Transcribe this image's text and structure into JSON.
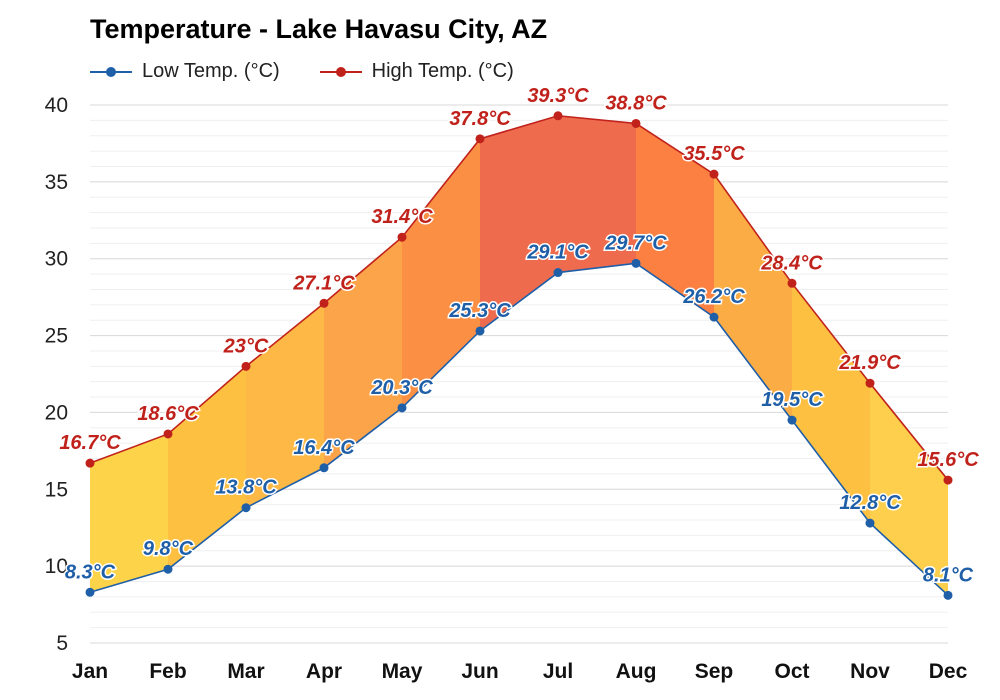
{
  "chart_data": {
    "type": "area",
    "title": "Temperature - Lake Havasu City, AZ",
    "categories": [
      "Jan",
      "Feb",
      "Mar",
      "Apr",
      "May",
      "Jun",
      "Jul",
      "Aug",
      "Sep",
      "Oct",
      "Nov",
      "Dec"
    ],
    "series": [
      {
        "name": "Low Temp. (°C)",
        "color": "#1f5fa8",
        "values": [
          8.3,
          9.8,
          13.8,
          16.4,
          20.3,
          25.3,
          29.1,
          29.7,
          26.2,
          19.5,
          12.8,
          8.1
        ],
        "labels": [
          "8.3°C",
          "9.8°C",
          "13.8°C",
          "16.4°C",
          "20.3°C",
          "25.3°C",
          "29.1°C",
          "29.7°C",
          "26.2°C",
          "19.5°C",
          "12.8°C",
          "8.1°C"
        ]
      },
      {
        "name": "High Temp. (°C)",
        "color": "#c0221b",
        "values": [
          16.7,
          18.6,
          23,
          27.1,
          31.4,
          37.8,
          39.3,
          38.8,
          35.5,
          28.4,
          21.9,
          15.6
        ],
        "labels": [
          "16.7°C",
          "18.6°C",
          "23°C",
          "27.1°C",
          "31.4°C",
          "37.8°C",
          "39.3°C",
          "38.8°C",
          "35.5°C",
          "28.4°C",
          "21.9°C",
          "15.6°C"
        ]
      }
    ],
    "band_colors": [
      "#fdd34a",
      "#fdc041",
      "#fdb845",
      "#fca44a",
      "#fb9045",
      "#ef6b4e",
      "#ef6b4e",
      "#fb8042",
      "#fcac45",
      "#fdc041",
      "#fdcf4c",
      "#fde680"
    ],
    "ylim": [
      5,
      40
    ],
    "yticks": [
      5,
      10,
      15,
      20,
      25,
      30,
      35,
      40
    ],
    "grid": true,
    "legend": "top-left"
  }
}
